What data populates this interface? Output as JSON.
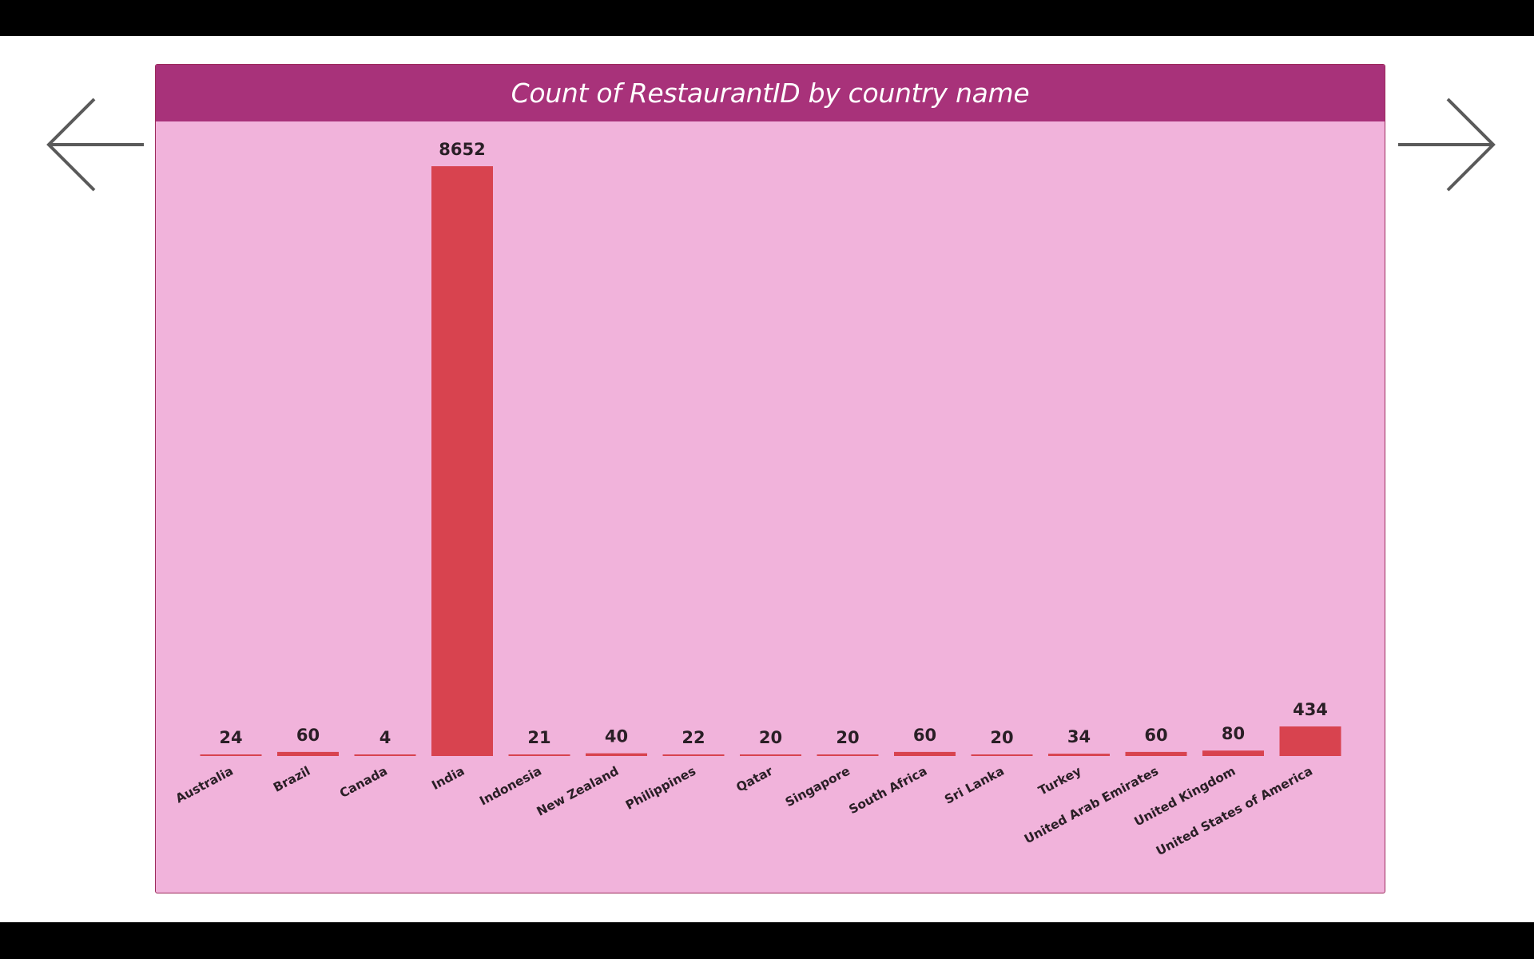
{
  "colors": {
    "letterbox": "#000000",
    "page_background": "#ffffff",
    "card_background": "#f1b3db",
    "header_background": "#a8327a",
    "title_text": "#ffffff",
    "bar_fill": "#d8434f",
    "label_text": "#2a1f26",
    "arrow_stroke": "#5a5a5a"
  },
  "navigation": {
    "prev_icon": "arrow-left-icon",
    "next_icon": "arrow-right-icon"
  },
  "chart_data": {
    "type": "bar",
    "title": "Count of RestaurantID by country name",
    "xlabel": "",
    "ylabel": "",
    "grid": false,
    "legend": "none",
    "ylim": [
      0,
      8652
    ],
    "categories": [
      "Australia",
      "Brazil",
      "Canada",
      "India",
      "Indonesia",
      "New Zealand",
      "Philippines",
      "Qatar",
      "Singapore",
      "South Africa",
      "Sri Lanka",
      "Turkey",
      "United Arab Emirates",
      "United Kingdom",
      "United States of America"
    ],
    "values": [
      24,
      60,
      4,
      8652,
      21,
      40,
      22,
      20,
      20,
      60,
      20,
      34,
      60,
      80,
      434
    ],
    "data_labels": [
      "24",
      "60",
      "4",
      "8652",
      "21",
      "40",
      "22",
      "20",
      "20",
      "60",
      "20",
      "34",
      "60",
      "80",
      "434"
    ]
  }
}
